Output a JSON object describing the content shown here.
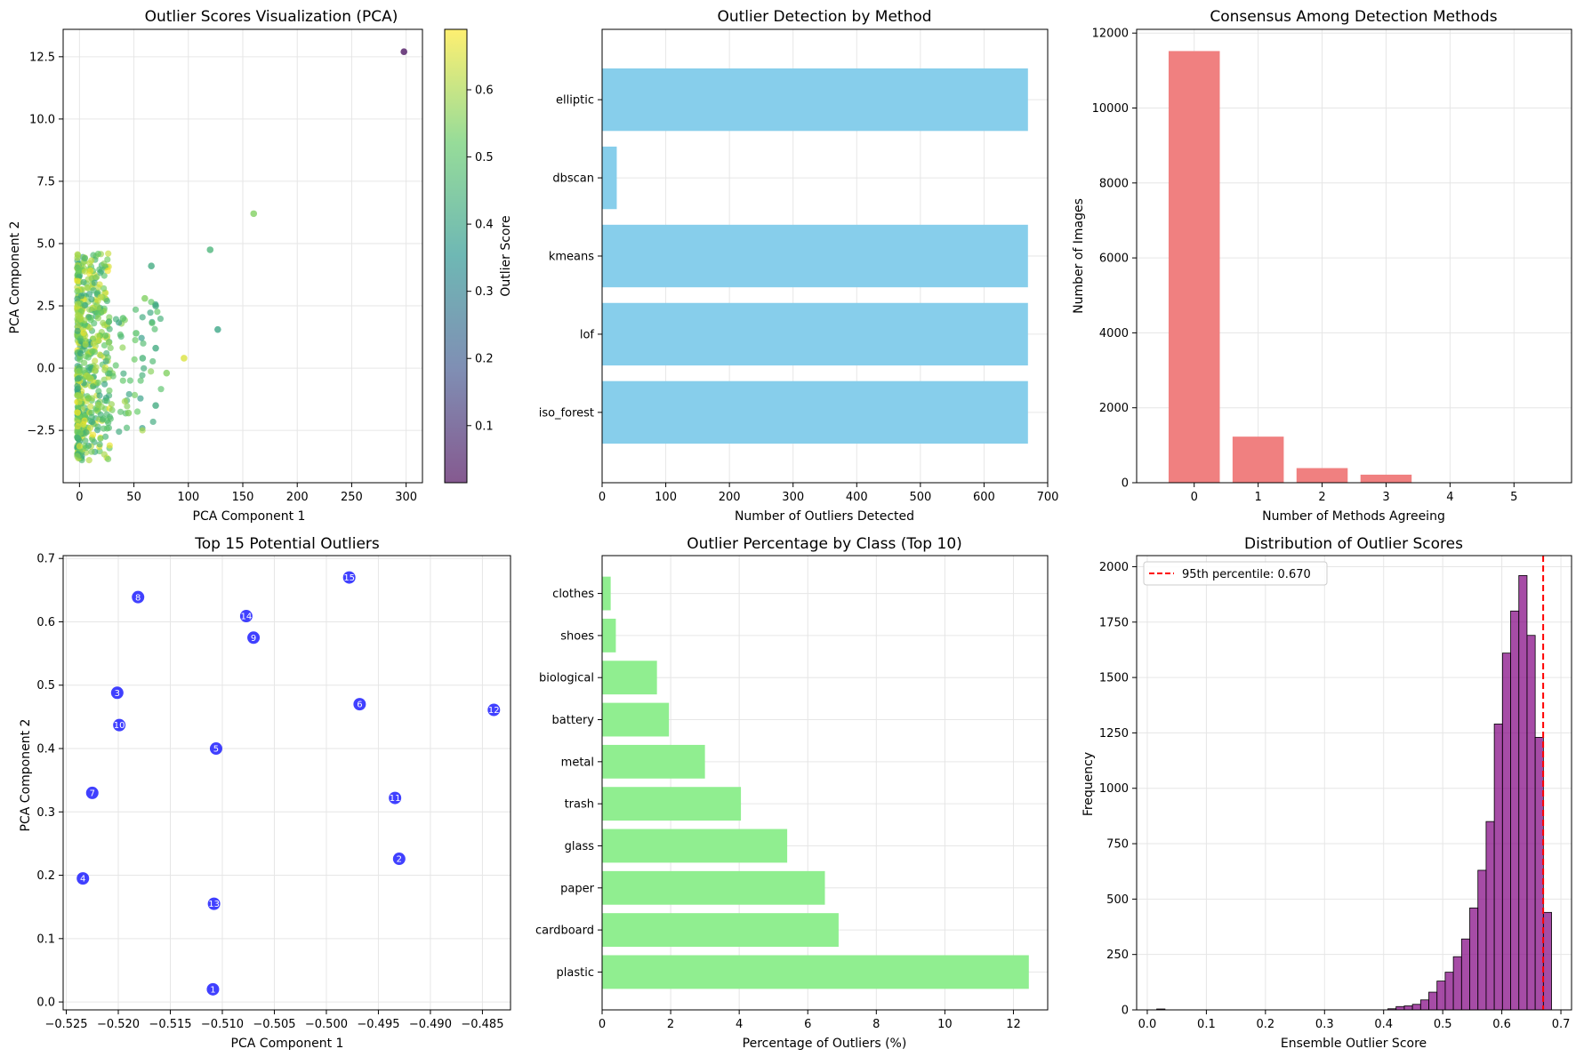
{
  "chart_data": [
    {
      "type": "scatter",
      "title": "Outlier Scores Visualization (PCA)",
      "xlabel": "PCA Component 1",
      "ylabel": "PCA Component 2",
      "xlim": [
        -15,
        315
      ],
      "ylim": [
        -4.6,
        13.6
      ],
      "xticks": [
        0,
        50,
        100,
        150,
        200,
        250,
        300
      ],
      "yticks": [
        -2.5,
        0.0,
        2.5,
        5.0,
        7.5,
        10.0,
        12.5
      ],
      "grid": true,
      "colormap": "viridis",
      "colorbar": {
        "label": "Outlier Score",
        "min": 0.015,
        "max": 0.69,
        "ticks": [
          0.1,
          0.2,
          0.3,
          0.4,
          0.5,
          0.6
        ]
      },
      "notable_points": [
        {
          "x": 298,
          "y": 12.7,
          "score": 0.03
        },
        {
          "x": 160,
          "y": 6.2,
          "score": 0.55
        },
        {
          "x": 120,
          "y": 4.75,
          "score": 0.45
        },
        {
          "x": 127,
          "y": 1.55,
          "score": 0.4
        },
        {
          "x": 96,
          "y": 0.4,
          "score": 0.65
        },
        {
          "x": 80,
          "y": -0.2,
          "score": 0.55
        },
        {
          "x": 66,
          "y": 4.1,
          "score": 0.42
        },
        {
          "x": 60,
          "y": 2.8,
          "score": 0.55
        },
        {
          "x": 52,
          "y": 1.4,
          "score": 0.5
        },
        {
          "x": 70,
          "y": 2.5,
          "score": 0.42
        },
        {
          "x": 70,
          "y": -1.5,
          "score": 0.42
        },
        {
          "x": 40,
          "y": 2.0,
          "score": 0.5
        },
        {
          "x": 58,
          "y": 0.4,
          "score": 0.45
        },
        {
          "x": 70,
          "y": 0.8,
          "score": 0.42
        },
        {
          "x": 45,
          "y": -1.8,
          "score": 0.55
        }
      ]
    },
    {
      "type": "bar",
      "orientation": "horizontal",
      "title": "Outlier Detection by Method",
      "xlabel": "Number of Outliers Detected",
      "ylabel": "",
      "categories": [
        "iso_forest",
        "lof",
        "kmeans",
        "dbscan",
        "elliptic"
      ],
      "values": [
        669,
        669,
        669,
        23,
        669
      ],
      "xlim": [
        0,
        700
      ],
      "xticks": [
        0,
        100,
        200,
        300,
        400,
        500,
        600,
        700
      ],
      "color": "#87ceeb",
      "grid": true
    },
    {
      "type": "bar",
      "title": "Consensus Among Detection Methods",
      "xlabel": "Number of Methods Agreeing",
      "ylabel": "Number of Images",
      "categories": [
        "0",
        "1",
        "2",
        "3",
        "4",
        "5"
      ],
      "values": [
        11520,
        1230,
        390,
        215,
        0,
        0
      ],
      "ylim": [
        0,
        12100
      ],
      "yticks": [
        0,
        2000,
        4000,
        6000,
        8000,
        10000,
        12000
      ],
      "color": "#f08080",
      "grid": true
    },
    {
      "type": "scatter",
      "title": "Top 15 Potential Outliers",
      "xlabel": "PCA Component 1",
      "ylabel": "PCA Component 2",
      "xlim": [
        -0.5253,
        -0.4823
      ],
      "ylim": [
        -0.0125,
        0.7045
      ],
      "xticks": [
        -0.525,
        -0.52,
        -0.515,
        -0.51,
        -0.505,
        -0.5,
        -0.495,
        -0.49,
        -0.485
      ],
      "xtick_labels": [
        "−0.525",
        "−0.520",
        "−0.515",
        "−0.510",
        "−0.505",
        "−0.500",
        "−0.495",
        "−0.490",
        "−0.485"
      ],
      "yticks": [
        0.0,
        0.1,
        0.2,
        0.3,
        0.4,
        0.5,
        0.6,
        0.7
      ],
      "color": "#0000ff",
      "grid": true,
      "points": [
        {
          "label": "1",
          "x": -0.5109,
          "y": 0.02
        },
        {
          "label": "2",
          "x": -0.493,
          "y": 0.226
        },
        {
          "label": "3",
          "x": -0.5201,
          "y": 0.488
        },
        {
          "label": "4",
          "x": -0.5234,
          "y": 0.195
        },
        {
          "label": "5",
          "x": -0.5106,
          "y": 0.4
        },
        {
          "label": "6",
          "x": -0.4968,
          "y": 0.47
        },
        {
          "label": "7",
          "x": -0.5225,
          "y": 0.33
        },
        {
          "label": "8",
          "x": -0.5181,
          "y": 0.639
        },
        {
          "label": "9",
          "x": -0.507,
          "y": 0.575
        },
        {
          "label": "10",
          "x": -0.5199,
          "y": 0.437
        },
        {
          "label": "11",
          "x": -0.4934,
          "y": 0.322
        },
        {
          "label": "12",
          "x": -0.4839,
          "y": 0.461
        },
        {
          "label": "13",
          "x": -0.5108,
          "y": 0.155
        },
        {
          "label": "14",
          "x": -0.5077,
          "y": 0.609
        },
        {
          "label": "15",
          "x": -0.4978,
          "y": 0.67
        }
      ]
    },
    {
      "type": "bar",
      "orientation": "horizontal",
      "title": "Outlier Percentage by Class (Top 10)",
      "xlabel": "Percentage of Outliers (%)",
      "ylabel": "",
      "categories": [
        "plastic",
        "cardboard",
        "paper",
        "glass",
        "trash",
        "metal",
        "battery",
        "biological",
        "shoes",
        "clothes"
      ],
      "values": [
        12.45,
        6.9,
        6.5,
        5.4,
        4.05,
        3.0,
        1.95,
        1.6,
        0.4,
        0.25
      ],
      "xlim": [
        0,
        13.0
      ],
      "xticks": [
        0,
        2,
        4,
        6,
        8,
        10,
        12
      ],
      "color": "#90ee90",
      "grid": true
    },
    {
      "type": "histogram",
      "title": "Distribution of Outlier Scores",
      "xlabel": "Ensemble Outlier Score",
      "ylabel": "Frequency",
      "xlim": [
        -0.018,
        0.718
      ],
      "ylim": [
        0,
        2050
      ],
      "xticks": [
        0.0,
        0.1,
        0.2,
        0.3,
        0.4,
        0.5,
        0.6,
        0.7
      ],
      "yticks": [
        0,
        250,
        500,
        750,
        1000,
        1250,
        1500,
        1750,
        2000
      ],
      "color": "#800080",
      "grid": true,
      "bin_start": 0.4072,
      "bin_width": 0.01385,
      "counts": [
        5,
        15,
        18,
        25,
        45,
        80,
        130,
        170,
        240,
        320,
        460,
        630,
        850,
        1290,
        1610,
        1800,
        1960,
        1690,
        1230,
        440
      ],
      "vline": {
        "x": 0.67,
        "label": "95th percentile: 0.670",
        "color": "#ff0000",
        "style": "dashed"
      },
      "legend": "top-left"
    }
  ]
}
